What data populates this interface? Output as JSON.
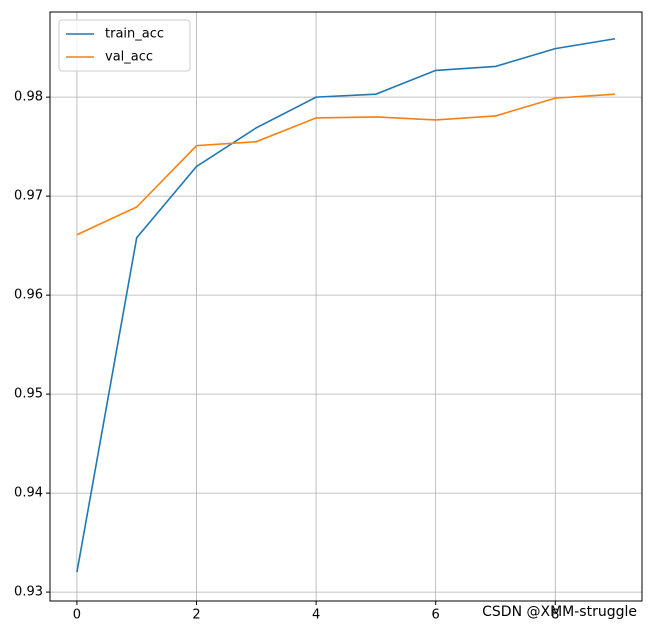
{
  "chart_data": {
    "type": "line",
    "x": [
      0,
      1,
      2,
      3,
      4,
      5,
      6,
      7,
      8,
      9
    ],
    "series": [
      {
        "name": "train_acc",
        "color": "#1f77b4",
        "values": [
          0.932,
          0.9658,
          0.973,
          0.9769,
          0.98,
          0.9803,
          0.9827,
          0.9831,
          0.9849,
          0.9859
        ]
      },
      {
        "name": "val_acc",
        "color": "#ff7f0e",
        "values": [
          0.9661,
          0.9689,
          0.9751,
          0.9755,
          0.9779,
          0.978,
          0.9777,
          0.9781,
          0.9799,
          0.9803
        ]
      }
    ],
    "xlim": [
      -0.45,
      9.45
    ],
    "xticks": [
      0,
      2,
      4,
      6,
      8
    ],
    "ylim": [
      0.9291,
      0.9886
    ],
    "yticks": [
      0.93,
      0.94,
      0.95,
      0.96,
      0.97,
      0.98
    ],
    "grid": true,
    "legend": "upper-left",
    "watermark": "CSDN @XMM-struggle"
  }
}
